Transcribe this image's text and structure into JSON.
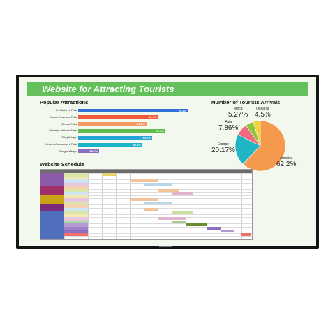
{
  "colors": {
    "banner": "#64c05a",
    "screen_background": "#f3f8ee",
    "bezel": "#151515"
  },
  "banner": {
    "title": "Website for Attracting Tourists"
  },
  "popular": {
    "title": "Popular Attractions",
    "items": [
      {
        "label": "Go National Park",
        "value": "95.2%",
        "fraction": 0.952,
        "color": "#2f6fd8"
      },
      {
        "label": "Emma Provincial Park",
        "value": "69.4%",
        "fraction": 0.694,
        "color": "#ee5c3b"
      },
      {
        "label": "Glenvia Falls",
        "value": "59.1%",
        "fraction": 0.591,
        "color": "#f59a62"
      },
      {
        "label": "Madelyn Historic Sites",
        "value": "75.6%",
        "fraction": 0.756,
        "color": "#5fbd4f"
      },
      {
        "label": "Riley Bridge",
        "value": "64.2%",
        "fraction": 0.642,
        "color": "#23a6d6"
      },
      {
        "label": "Andrea Amusement Park",
        "value": "55.6%",
        "fraction": 0.556,
        "color": "#19b4c9"
      },
      {
        "label": "Giorgio Village",
        "value": "18.0%",
        "fraction": 0.18,
        "color": "#8a6fc0"
      }
    ]
  },
  "arrivals": {
    "title": "Number of Tourists Arrivals",
    "slices": [
      {
        "name": "America",
        "pct": "62.2%",
        "value": 62.2,
        "color": "#f59a4d"
      },
      {
        "name": "Europe",
        "pct": "20.17%",
        "value": 20.17,
        "color": "#1fb6c4"
      },
      {
        "name": "Asia",
        "pct": "7.86%",
        "value": 7.86,
        "color": "#f06b7d"
      },
      {
        "name": "Africa",
        "pct": "5.27%",
        "value": 5.27,
        "color": "#8cc63f"
      },
      {
        "name": "Oceania",
        "pct": "4.5%",
        "value": 4.5,
        "color": "#f2d43a"
      }
    ]
  },
  "schedule": {
    "title": "Website Schedule"
  }
}
